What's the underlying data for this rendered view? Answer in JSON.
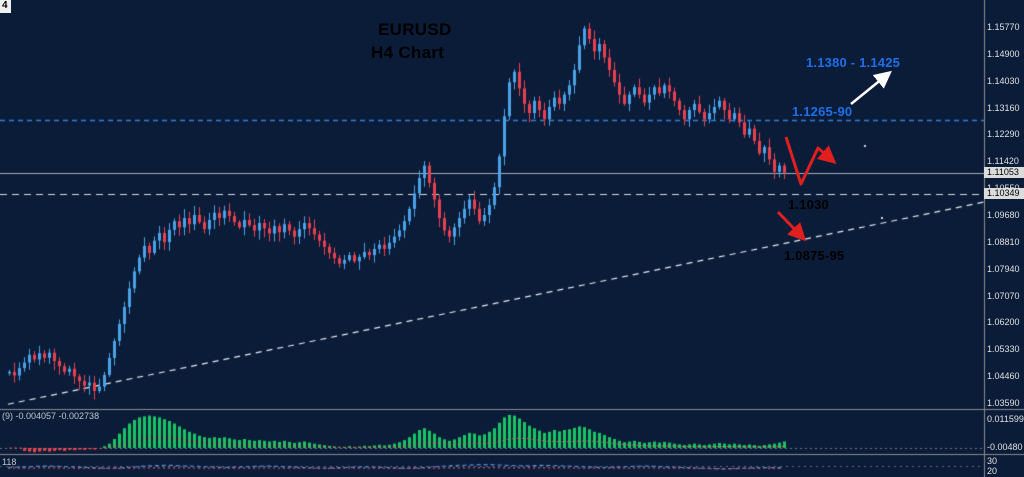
{
  "window": {
    "corner_label": "4"
  },
  "annotations": {
    "title": "EURUSD",
    "subtitle": "H4 Chart",
    "resistance_upper": "1.1380 - 1.1425",
    "resistance": "1.1265-90",
    "support": "1.1030",
    "support_lower": "1.0875-95"
  },
  "chart": {
    "colors": {
      "background": "#0b1c38",
      "bull": "#4aa3e8",
      "bear": "#e8404f",
      "histogram_green": "#17c564",
      "signal_red": "#ff5050",
      "annotation_blue": "#1e6fe8",
      "annotation_red": "#e01f1f",
      "annotation_white": "#ffffff",
      "axis_text": "#e0e0e0",
      "trendline": "#e8ecf2",
      "level_cyan": "#2f7ed8",
      "current_price_line": "#9fb0c0",
      "separator": "#8b8b8b",
      "ind2_blue": "#4d8fe0",
      "ind2_red": "#e04d4d"
    }
  },
  "chart_data": {
    "type": "candlestick",
    "symbol": "EURUSD",
    "timeframe": "H4",
    "ylim": [
      1.0345,
      1.1645
    ],
    "y_axis_ticks": [
      "1.15770",
      "1.14900",
      "1.14030",
      "1.13160",
      "1.12290",
      "1.11420",
      "1.10550",
      "1.09680",
      "1.08810",
      "1.07940",
      "1.07070",
      "1.06200",
      "1.05330",
      "1.04460",
      "1.03590"
    ],
    "current_price_label": "1.11053",
    "level_label": "1.10349",
    "levels": {
      "resistance_zone": 1.1276,
      "current_price": 1.11053,
      "support_dashed": 1.10349
    },
    "trendline": {
      "from_price": 1.0355,
      "to_price": 1.101
    },
    "candles_close": [
      1.046,
      1.0448,
      1.0472,
      1.049,
      1.0515,
      1.05,
      1.052,
      1.0505,
      1.0522,
      1.0495,
      1.0478,
      1.046,
      1.047,
      1.0445,
      1.043,
      1.0415,
      1.0425,
      1.0398,
      1.0412,
      1.045,
      1.0505,
      1.056,
      1.0615,
      1.067,
      1.073,
      1.0785,
      1.083,
      1.0868,
      1.0845,
      1.0885,
      1.091,
      1.088,
      1.092,
      1.0948,
      1.0928,
      1.0958,
      1.0938,
      1.0968,
      1.0945,
      1.0922,
      1.0952,
      1.0975,
      1.0958,
      1.0982,
      1.0965,
      1.0945,
      1.0928,
      1.0952,
      1.0935,
      1.0918,
      1.0942,
      1.0925,
      1.0908,
      1.0932,
      1.0912,
      1.0938,
      1.0918,
      1.0898,
      1.0922,
      1.0942,
      1.0925,
      1.0905,
      1.0885,
      1.0865,
      1.0845,
      1.0828,
      1.081,
      1.0822,
      1.0838,
      1.0818,
      1.0832,
      1.0848,
      1.0838,
      1.0858,
      1.0872,
      1.0858,
      1.0878,
      1.0898,
      1.0918,
      1.0948,
      1.0988,
      1.1038,
      1.1088,
      1.1128,
      1.1072,
      1.1018,
      1.0958,
      1.0918,
      1.0898,
      1.0928,
      1.0958,
      1.0988,
      1.1018,
      1.0988,
      1.0948,
      1.0968,
      1.1,
      1.1058,
      1.1158,
      1.1288,
      1.1398,
      1.1432,
      1.1378,
      1.1328,
      1.1298,
      1.1338,
      1.1308,
      1.1278,
      1.1318,
      1.1348,
      1.1328,
      1.1358,
      1.1388,
      1.1438,
      1.1518,
      1.1572,
      1.1538,
      1.1498,
      1.1522,
      1.1478,
      1.1438,
      1.1398,
      1.1358,
      1.1328,
      1.1358,
      1.1382,
      1.1358,
      1.1332,
      1.1358,
      1.1382,
      1.1362,
      1.1388,
      1.1368,
      1.1338,
      1.1308,
      1.1278,
      1.1308,
      1.1328,
      1.1302,
      1.1278,
      1.1298,
      1.1318,
      1.1338,
      1.1308,
      1.1278,
      1.1298,
      1.1268,
      1.1228,
      1.1248,
      1.1208,
      1.1168,
      1.1188,
      1.1148,
      1.1108,
      1.1128,
      1.1105
    ],
    "ind1": {
      "name": "osma-histogram",
      "label_left": "(9) -0.004057 -0.002738",
      "axis_labels": [
        "0.011599",
        "-0.00480"
      ],
      "values": [
        0,
        0,
        0,
        -0.08,
        -0.1,
        -0.12,
        -0.1,
        -0.08,
        -0.1,
        -0.08,
        -0.06,
        -0.08,
        -0.05,
        -0.06,
        -0.04,
        -0.05,
        -0.03,
        -0.04,
        0,
        0.05,
        0.12,
        0.25,
        0.4,
        0.55,
        0.68,
        0.78,
        0.85,
        0.88,
        0.9,
        0.88,
        0.85,
        0.8,
        0.75,
        0.68,
        0.6,
        0.52,
        0.45,
        0.4,
        0.34,
        0.3,
        0.28,
        0.3,
        0.28,
        0.3,
        0.27,
        0.24,
        0.22,
        0.25,
        0.22,
        0.2,
        0.22,
        0.2,
        0.18,
        0.2,
        0.17,
        0.2,
        0.17,
        0.14,
        0.16,
        0.18,
        0.15,
        0.12,
        0.1,
        0.08,
        0.06,
        0.04,
        0.02,
        0.03,
        0.05,
        0.03,
        0.04,
        0.06,
        0.05,
        0.07,
        0.09,
        0.07,
        0.09,
        0.12,
        0.16,
        0.22,
        0.3,
        0.4,
        0.5,
        0.55,
        0.48,
        0.4,
        0.3,
        0.24,
        0.2,
        0.24,
        0.3,
        0.36,
        0.42,
        0.4,
        0.35,
        0.38,
        0.45,
        0.55,
        0.7,
        0.85,
        0.92,
        0.9,
        0.82,
        0.72,
        0.62,
        0.55,
        0.48,
        0.42,
        0.45,
        0.5,
        0.46,
        0.5,
        0.52,
        0.56,
        0.6,
        0.58,
        0.52,
        0.45,
        0.42,
        0.36,
        0.3,
        0.25,
        0.2,
        0.16,
        0.18,
        0.2,
        0.17,
        0.14,
        0.16,
        0.18,
        0.15,
        0.17,
        0.15,
        0.12,
        0.1,
        0.08,
        0.1,
        0.12,
        0.1,
        0.08,
        0.1,
        0.12,
        0.14,
        0.12,
        0.1,
        0.12,
        0.1,
        0.08,
        0.1,
        0.08,
        0.06,
        0.08,
        0.1,
        0.12,
        0.15,
        0.18
      ]
    },
    "ind2": {
      "label_left": "118",
      "axis_labels": [
        "30",
        "20"
      ],
      "blue": [
        0.5,
        0.55,
        0.6,
        0.55,
        0.5,
        0.45,
        0.5,
        0.6,
        0.65,
        0.6,
        0.55,
        0.5,
        0.55,
        0.6,
        0.55,
        0.5,
        0.45,
        0.5,
        0.55,
        0.5,
        0.45,
        0.5,
        0.6,
        0.65,
        0.7,
        0.65,
        0.6,
        0.65,
        0.6,
        0.55,
        0.5,
        0.55,
        0.6,
        0.55,
        0.5,
        0.45,
        0.4,
        0.45,
        0.5,
        0.48
      ],
      "red": [
        0.45,
        0.46,
        0.47,
        0.46,
        0.45,
        0.44,
        0.45,
        0.47,
        0.48,
        0.47,
        0.46,
        0.45,
        0.46,
        0.47,
        0.46,
        0.45,
        0.44,
        0.45,
        0.46,
        0.45,
        0.44,
        0.45,
        0.47,
        0.48,
        0.49,
        0.48,
        0.47,
        0.48,
        0.47,
        0.46,
        0.45,
        0.46,
        0.47,
        0.46,
        0.45,
        0.44,
        0.43,
        0.44,
        0.45,
        0.44
      ]
    }
  }
}
